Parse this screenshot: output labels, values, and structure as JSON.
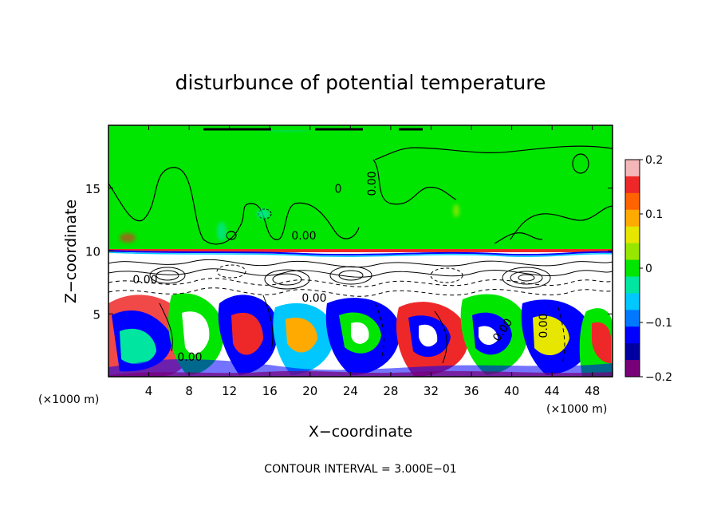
{
  "chart_data": {
    "type": "heatmap",
    "title": "disturbunce of potential temperature",
    "xlabel": "X−coordinate",
    "ylabel": "Z−coordinate",
    "x_unit_left": "(×1000 m)",
    "x_unit_right": "(×1000 m)",
    "xlim": [
      0,
      50
    ],
    "ylim": [
      0,
      20
    ],
    "xticks": [
      4,
      8,
      12,
      16,
      20,
      24,
      28,
      32,
      36,
      40,
      44,
      48
    ],
    "yticks": [
      5,
      10,
      15
    ],
    "colorbar": {
      "ticks": [
        0.2,
        0.1,
        0,
        -0.1,
        -0.2
      ],
      "tick_labels": [
        "0.2",
        "0.1",
        "0",
        "−0.1",
        "−0.2"
      ],
      "range": [
        -0.2,
        0.2
      ],
      "colors": [
        "#f4b6b6",
        "#ee2828",
        "#ff6400",
        "#ffaa00",
        "#e6e600",
        "#96e600",
        "#00e600",
        "#00e6a0",
        "#00c8ff",
        "#0078ff",
        "#0000ff",
        "#0000a0",
        "#780078"
      ]
    },
    "contour_labels": [
      "0.00",
      "0.00",
      "0.00",
      "0.00",
      "0.00",
      "0.00",
      "0.00"
    ],
    "annotation": "CONTOUR INTERVAL = 3.000E−01",
    "colors": {
      "upper_layer": "#00e600",
      "frame": "#000000"
    }
  }
}
